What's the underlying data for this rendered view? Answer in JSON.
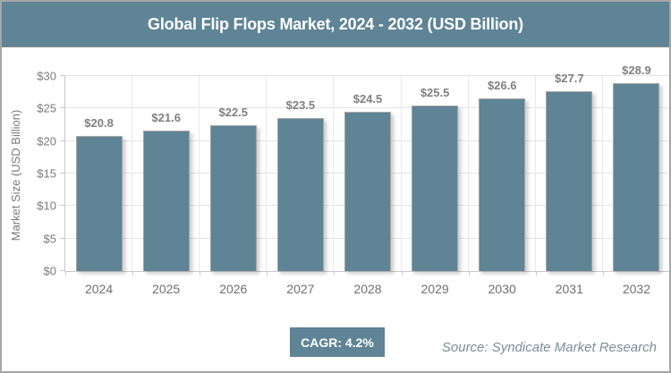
{
  "title": "Global Flip Flops Market, 2024 - 2032 (USD Billion)",
  "chart_data": {
    "type": "bar",
    "title": "Global Flip Flops Market, 2024 - 2032 (USD Billion)",
    "categories": [
      "2024",
      "2025",
      "2026",
      "2027",
      "2028",
      "2029",
      "2030",
      "2031",
      "2032"
    ],
    "values": [
      20.8,
      21.6,
      22.5,
      23.5,
      24.5,
      25.5,
      26.6,
      27.7,
      28.9
    ],
    "value_labels": [
      "$20.8",
      "$21.6",
      "$22.5",
      "$23.5",
      "$24.5",
      "$25.5",
      "$26.6",
      "$27.7",
      "$28.9"
    ],
    "xlabel": "",
    "ylabel": "Market Size (USD Billion)",
    "y_tick_labels": [
      "$0",
      "$5",
      "$10",
      "$15",
      "$20",
      "$25",
      "$30"
    ],
    "ylim": [
      0,
      30
    ],
    "grid": true,
    "legend": "none",
    "bar_color": "#5e8495"
  },
  "footer": {
    "cagr_label": "CAGR: 4.2%",
    "source": "Source: Syndicate Market Research"
  },
  "colors": {
    "accent_teal": "#5e8495",
    "bar_border": "#a6a6a6",
    "grid_line": "#e3e3e3",
    "axis_line": "#c9c9c9",
    "label_gray": "#7f7f7f",
    "source_gray_blue": "#7b8d98"
  }
}
